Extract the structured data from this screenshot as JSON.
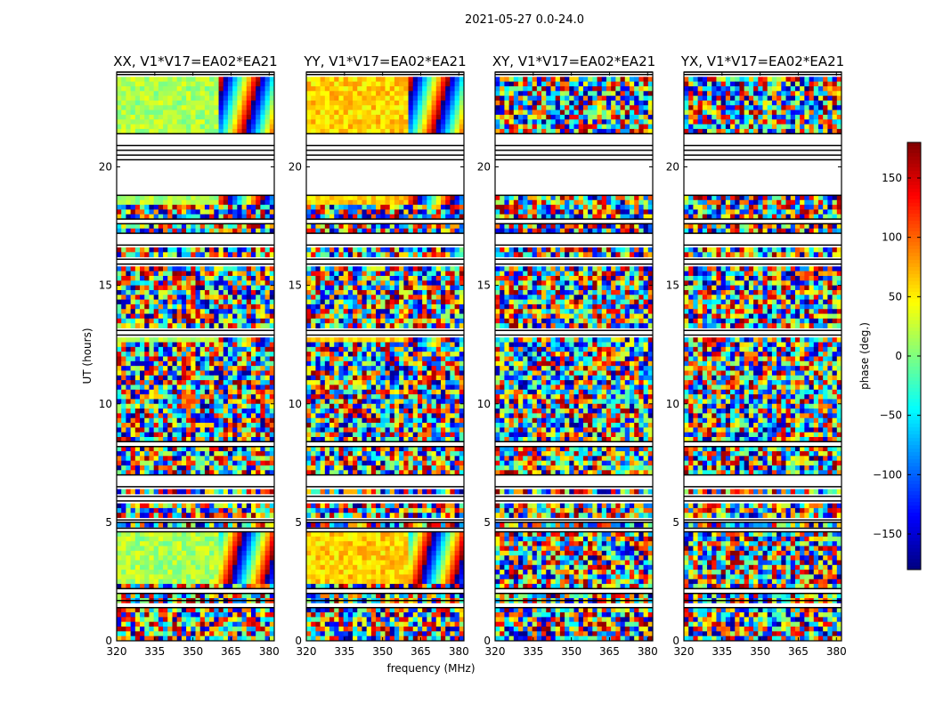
{
  "figure": {
    "title": "2021-05-27 0.0-24.0",
    "xlabel": "frequency (MHz)",
    "ylabel": "UT (hours)"
  },
  "colorbar": {
    "label": "phase (deg.)",
    "range": [
      -180,
      180
    ],
    "ticks": [
      150,
      100,
      50,
      0,
      -50,
      -100,
      -150
    ],
    "tick_labels": [
      "150",
      "100",
      "50",
      "0",
      "−50",
      "−100",
      "−150"
    ],
    "colormap": [
      "#00007f",
      "#0000ff",
      "#007fff",
      "#00ffff",
      "#7fff7f",
      "#ffff00",
      "#ff7f00",
      "#ff0000",
      "#7f0000"
    ]
  },
  "chart_data": [
    {
      "type": "heatmap",
      "title": "XX, V1*V17=EA02*EA21",
      "x_range": [
        320,
        382
      ],
      "y_range": [
        0,
        24
      ],
      "x_ticks": [
        320,
        335,
        350,
        365,
        380
      ],
      "x_tick_labels": [
        "320",
        "335",
        "350",
        "365",
        "380"
      ],
      "y_ticks": [
        0,
        5,
        10,
        15,
        20
      ],
      "y_tick_labels": [
        "0",
        "5",
        "10",
        "15",
        "20"
      ],
      "base_phase_deg": 15,
      "coherent_bands_hours": [
        [
          2.4,
          4.6
        ],
        [
          12.6,
          13.0
        ],
        [
          21.4,
          23.8
        ],
        [
          18.3,
          18.7
        ]
      ]
    },
    {
      "type": "heatmap",
      "title": "YY, V1*V17=EA02*EA21",
      "x_range": [
        320,
        382
      ],
      "y_range": [
        0,
        24
      ],
      "x_ticks": [
        320,
        335,
        350,
        365,
        380
      ],
      "x_tick_labels": [
        "320",
        "335",
        "350",
        "365",
        "380"
      ],
      "y_ticks": [
        0,
        5,
        10,
        15,
        20
      ],
      "y_tick_labels": [
        "0",
        "5",
        "10",
        "15",
        "20"
      ],
      "base_phase_deg": 60,
      "coherent_bands_hours": [
        [
          2.4,
          4.6
        ],
        [
          12.6,
          13.0
        ],
        [
          21.4,
          23.8
        ],
        [
          18.3,
          18.7
        ]
      ]
    },
    {
      "type": "heatmap",
      "title": "XY, V1*V17=EA02*EA21",
      "x_range": [
        320,
        382
      ],
      "y_range": [
        0,
        24
      ],
      "x_ticks": [
        320,
        335,
        350,
        365,
        380
      ],
      "x_tick_labels": [
        "320",
        "335",
        "350",
        "365",
        "380"
      ],
      "y_ticks": [
        0,
        5,
        10,
        15,
        20
      ],
      "y_tick_labels": [
        "0",
        "5",
        "10",
        "15",
        "20"
      ],
      "base_phase_deg": 0,
      "coherent_bands_hours": []
    },
    {
      "type": "heatmap",
      "title": "YX, V1*V17=EA02*EA21",
      "x_range": [
        320,
        382
      ],
      "y_range": [
        0,
        24
      ],
      "x_ticks": [
        320,
        335,
        350,
        365,
        380
      ],
      "x_tick_labels": [
        "320",
        "335",
        "350",
        "365",
        "380"
      ],
      "y_ticks": [
        0,
        5,
        10,
        15,
        20
      ],
      "y_tick_labels": [
        "0",
        "5",
        "10",
        "15",
        "20"
      ],
      "base_phase_deg": 0,
      "coherent_bands_hours": []
    }
  ],
  "flagged_intervals_hours": [
    [
      1.4,
      1.7
    ],
    [
      2.0,
      2.2
    ],
    [
      4.6,
      4.75
    ],
    [
      5.0,
      5.1
    ],
    [
      5.9,
      6.1
    ],
    [
      6.5,
      7.0
    ],
    [
      8.2,
      8.4
    ],
    [
      12.9,
      13.1
    ],
    [
      15.9,
      16.1
    ],
    [
      16.7,
      17.2
    ],
    [
      17.6,
      17.8
    ],
    [
      18.8,
      20.3
    ],
    [
      20.5,
      20.7
    ],
    [
      20.9,
      21.4
    ],
    [
      23.9,
      24.0
    ]
  ]
}
